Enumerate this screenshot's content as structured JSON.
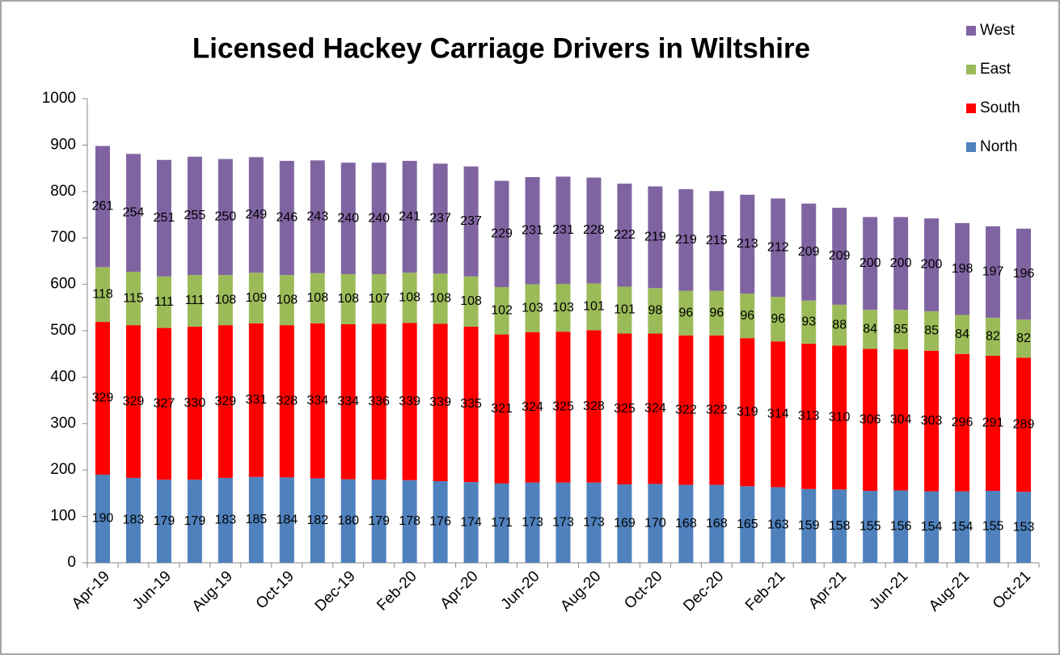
{
  "chart_data": {
    "type": "stacked_bar",
    "title": "Licensed Hackey Carriage Drivers in Wiltshire",
    "categories": [
      "Apr-19",
      null,
      "Jun-19",
      null,
      "Aug-19",
      null,
      "Oct-19",
      null,
      "Dec-19",
      null,
      "Feb-20",
      null,
      "Apr-20",
      null,
      "Jun-20",
      null,
      "Aug-20",
      null,
      "Oct-20",
      null,
      "Dec-20",
      null,
      "Feb-21",
      null,
      "Apr-21",
      null,
      "Jun-21",
      null,
      "Aug-21",
      null,
      "Oct-21"
    ],
    "series": [
      {
        "name": "North",
        "color": "#4f81bd",
        "values": [
          190,
          183,
          179,
          179,
          183,
          185,
          184,
          182,
          180,
          179,
          178,
          176,
          174,
          171,
          173,
          173,
          173,
          169,
          170,
          168,
          168,
          165,
          163,
          159,
          158,
          155,
          156,
          154,
          154,
          155,
          153
        ]
      },
      {
        "name": "South",
        "color": "#ff0000",
        "values": [
          329,
          329,
          327,
          330,
          329,
          331,
          328,
          334,
          334,
          336,
          339,
          339,
          335,
          321,
          324,
          325,
          328,
          325,
          324,
          322,
          322,
          319,
          314,
          313,
          310,
          306,
          304,
          303,
          296,
          291,
          289
        ]
      },
      {
        "name": "East",
        "color": "#9bbb59",
        "values": [
          118,
          115,
          111,
          111,
          108,
          109,
          108,
          108,
          108,
          107,
          108,
          108,
          108,
          102,
          103,
          103,
          101,
          101,
          98,
          96,
          96,
          96,
          96,
          93,
          88,
          84,
          85,
          85,
          84,
          82,
          82
        ]
      },
      {
        "name": "West",
        "color": "#8064a2",
        "values": [
          261,
          254,
          251,
          255,
          250,
          249,
          246,
          243,
          240,
          240,
          241,
          237,
          237,
          229,
          231,
          231,
          228,
          222,
          219,
          219,
          215,
          213,
          212,
          209,
          209,
          200,
          200,
          200,
          198,
          197,
          196
        ]
      }
    ],
    "ylim": [
      0,
      1000
    ],
    "yticks": [
      0,
      100,
      200,
      300,
      400,
      500,
      600,
      700,
      800,
      900,
      1000
    ],
    "legend": "top-right"
  }
}
